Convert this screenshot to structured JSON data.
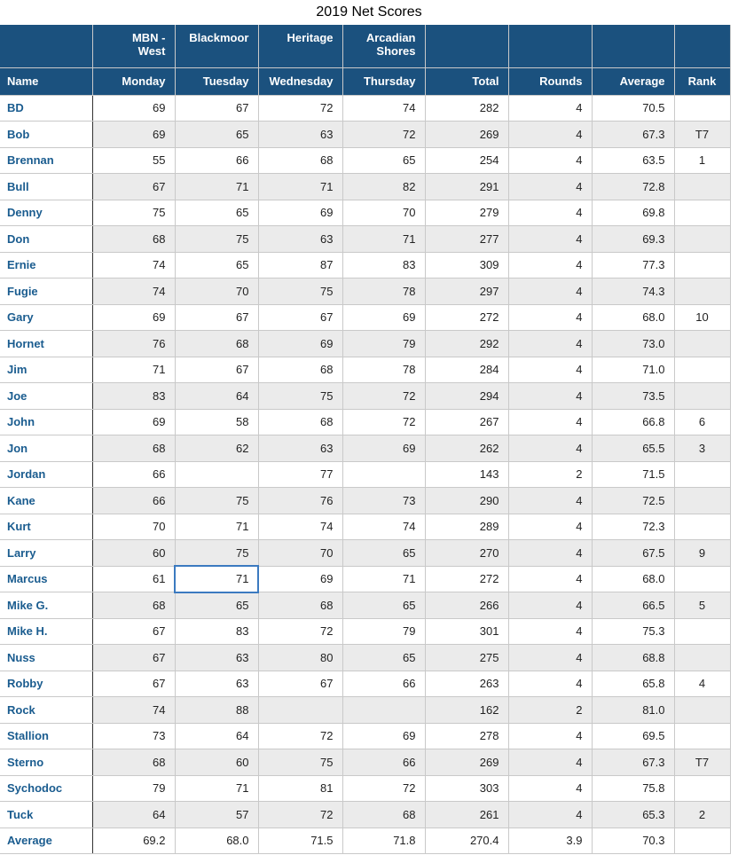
{
  "title": "2019 Net Scores",
  "colors": {
    "header-bg": "#1B517E",
    "name-text": "#1A5C8F",
    "row-alt": "#EBEBEB",
    "grid": "#C9C9C9",
    "name-divider": "#333333",
    "selection": "#3B7AC0"
  },
  "table": {
    "course_header": [
      "",
      "MBN -\nWest",
      "Blackmoor",
      "Heritage",
      "Arcadian\nShores",
      "",
      "",
      "",
      ""
    ],
    "columns": [
      "Name",
      "Monday",
      "Tuesday",
      "Wednesday",
      "Thursday",
      "Total",
      "Rounds",
      "Average",
      "Rank"
    ],
    "rows": [
      [
        "BD",
        "69",
        "67",
        "72",
        "74",
        "282",
        "4",
        "70.5",
        ""
      ],
      [
        "Bob",
        "69",
        "65",
        "63",
        "72",
        "269",
        "4",
        "67.3",
        "T7"
      ],
      [
        "Brennan",
        "55",
        "66",
        "68",
        "65",
        "254",
        "4",
        "63.5",
        "1"
      ],
      [
        "Bull",
        "67",
        "71",
        "71",
        "82",
        "291",
        "4",
        "72.8",
        ""
      ],
      [
        "Denny",
        "75",
        "65",
        "69",
        "70",
        "279",
        "4",
        "69.8",
        ""
      ],
      [
        "Don",
        "68",
        "75",
        "63",
        "71",
        "277",
        "4",
        "69.3",
        ""
      ],
      [
        "Ernie",
        "74",
        "65",
        "87",
        "83",
        "309",
        "4",
        "77.3",
        ""
      ],
      [
        "Fugie",
        "74",
        "70",
        "75",
        "78",
        "297",
        "4",
        "74.3",
        ""
      ],
      [
        "Gary",
        "69",
        "67",
        "67",
        "69",
        "272",
        "4",
        "68.0",
        "10"
      ],
      [
        "Hornet",
        "76",
        "68",
        "69",
        "79",
        "292",
        "4",
        "73.0",
        ""
      ],
      [
        "Jim",
        "71",
        "67",
        "68",
        "78",
        "284",
        "4",
        "71.0",
        ""
      ],
      [
        "Joe",
        "83",
        "64",
        "75",
        "72",
        "294",
        "4",
        "73.5",
        ""
      ],
      [
        "John",
        "69",
        "58",
        "68",
        "72",
        "267",
        "4",
        "66.8",
        "6"
      ],
      [
        "Jon",
        "68",
        "62",
        "63",
        "69",
        "262",
        "4",
        "65.5",
        "3"
      ],
      [
        "Jordan",
        "66",
        "",
        "77",
        "",
        "143",
        "2",
        "71.5",
        ""
      ],
      [
        "Kane",
        "66",
        "75",
        "76",
        "73",
        "290",
        "4",
        "72.5",
        ""
      ],
      [
        "Kurt",
        "70",
        "71",
        "74",
        "74",
        "289",
        "4",
        "72.3",
        ""
      ],
      [
        "Larry",
        "60",
        "75",
        "70",
        "65",
        "270",
        "4",
        "67.5",
        "9"
      ],
      [
        "Marcus",
        "61",
        "71",
        "69",
        "71",
        "272",
        "4",
        "68.0",
        ""
      ],
      [
        "Mike G.",
        "68",
        "65",
        "68",
        "65",
        "266",
        "4",
        "66.5",
        "5"
      ],
      [
        "Mike H.",
        "67",
        "83",
        "72",
        "79",
        "301",
        "4",
        "75.3",
        ""
      ],
      [
        "Nuss",
        "67",
        "63",
        "80",
        "65",
        "275",
        "4",
        "68.8",
        ""
      ],
      [
        "Robby",
        "67",
        "63",
        "67",
        "66",
        "263",
        "4",
        "65.8",
        "4"
      ],
      [
        "Rock",
        "74",
        "88",
        "",
        "",
        "162",
        "2",
        "81.0",
        ""
      ],
      [
        "Stallion",
        "73",
        "64",
        "72",
        "69",
        "278",
        "4",
        "69.5",
        ""
      ],
      [
        "Sterno",
        "68",
        "60",
        "75",
        "66",
        "269",
        "4",
        "67.3",
        "T7"
      ],
      [
        "Sychodoc",
        "79",
        "71",
        "81",
        "72",
        "303",
        "4",
        "75.8",
        ""
      ],
      [
        "Tuck",
        "64",
        "57",
        "72",
        "68",
        "261",
        "4",
        "65.3",
        "2"
      ],
      [
        "Average",
        "69.2",
        "68.0",
        "71.5",
        "71.8",
        "270.4",
        "3.9",
        "70.3",
        ""
      ]
    ]
  },
  "selection": {
    "player": "Marcus",
    "column": "Tuesday",
    "value": "71",
    "row_index": 18,
    "col_index": 2
  }
}
